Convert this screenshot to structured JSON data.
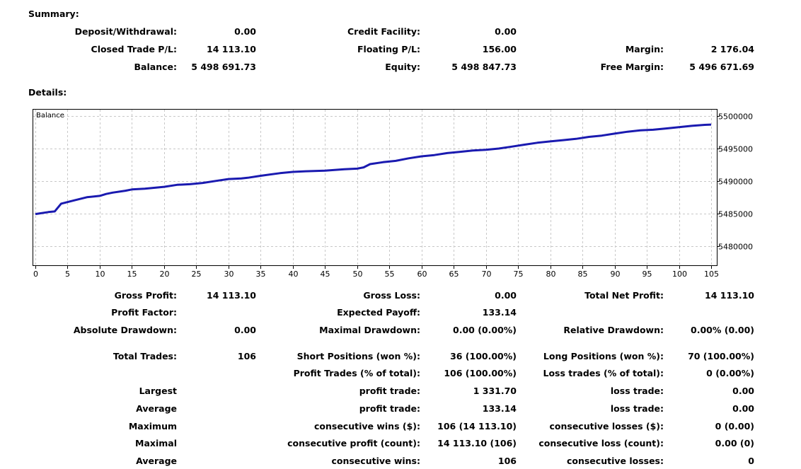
{
  "summary": {
    "title": "Summary:",
    "deposit_label": "Deposit/Withdrawal:",
    "deposit_value": "0.00",
    "credit_label": "Credit Facility:",
    "credit_value": "0.00",
    "closed_pl_label": "Closed Trade P/L:",
    "closed_pl_value": "14 113.10",
    "floating_label": "Floating P/L:",
    "floating_value": "156.00",
    "margin_label": "Margin:",
    "margin_value": "2 176.04",
    "balance_label": "Balance:",
    "balance_value": "5 498 691.73",
    "equity_label": "Equity:",
    "equity_value": "5 498 847.73",
    "free_margin_label": "Free Margin:",
    "free_margin_value": "5 496 671.69"
  },
  "details": {
    "title": "Details:",
    "gross_profit_label": "Gross Profit:",
    "gross_profit_value": "14 113.10",
    "gross_loss_label": "Gross Loss:",
    "gross_loss_value": "0.00",
    "total_net_profit_label": "Total Net Profit:",
    "total_net_profit_value": "14 113.10",
    "profit_factor_label": "Profit Factor:",
    "expected_payoff_label": "Expected Payoff:",
    "expected_payoff_value": "133.14",
    "absolute_drawdown_label": "Absolute Drawdown:",
    "absolute_drawdown_value": "0.00",
    "maximal_drawdown_label": "Maximal Drawdown:",
    "maximal_drawdown_value": "0.00 (0.00%)",
    "relative_drawdown_label": "Relative Drawdown:",
    "relative_drawdown_value": "0.00% (0.00)",
    "total_trades_label": "Total Trades:",
    "total_trades_value": "106",
    "short_positions_label": "Short Positions (won %):",
    "short_positions_value": "36 (100.00%)",
    "long_positions_label": "Long Positions (won %):",
    "long_positions_value": "70 (100.00%)",
    "profit_trades_label": "Profit Trades (% of total):",
    "profit_trades_value": "106 (100.00%)",
    "loss_trades_label": "Loss trades (% of total):",
    "loss_trades_value": "0 (0.00%)",
    "largest_label": "Largest",
    "largest_profit_label": "profit trade:",
    "largest_profit_value": "1 331.70",
    "largest_loss_label": "loss trade:",
    "largest_loss_value": "0.00",
    "average_label": "Average",
    "average_profit_label": "profit trade:",
    "average_profit_value": "133.14",
    "average_loss_label": "loss trade:",
    "average_loss_value": "0.00",
    "maximum_label": "Maximum",
    "max_wins_label": "consecutive wins ($):",
    "max_wins_value": "106 (14 113.10)",
    "max_losses_label": "consecutive losses ($):",
    "max_losses_value": "0 (0.00)",
    "maximal_label": "Maximal",
    "maximal_profit_label": "consecutive profit (count):",
    "maximal_profit_value": "14 113.10 (106)",
    "maximal_loss_label": "consecutive loss (count):",
    "maximal_loss_value": "0.00 (0)",
    "average2_label": "Average",
    "avg_wins_label": "consecutive wins:",
    "avg_wins_value": "106",
    "avg_losses_label": "consecutive losses:",
    "avg_losses_value": "0"
  },
  "chart_data": {
    "type": "line",
    "title": "Balance",
    "xlabel": "",
    "ylabel": "",
    "xlim": [
      0,
      105
    ],
    "ylim": [
      5477000,
      5501000
    ],
    "x_ticks": [
      0,
      5,
      10,
      15,
      20,
      25,
      30,
      35,
      40,
      45,
      50,
      55,
      60,
      65,
      70,
      75,
      80,
      85,
      90,
      95,
      100,
      105
    ],
    "y_ticks": [
      5480000,
      5485000,
      5490000,
      5495000,
      5500000
    ],
    "grid": true,
    "line_color": "#1a1ab0",
    "series": [
      {
        "x": [
          0,
          2,
          3,
          4,
          6,
          8,
          10,
          11,
          12,
          14,
          15,
          17,
          18,
          20,
          22,
          24,
          26,
          28,
          30,
          32,
          33,
          35,
          38,
          40,
          42,
          45,
          48,
          50,
          51,
          52,
          54,
          56,
          58,
          60,
          62,
          64,
          66,
          68,
          70,
          72,
          74,
          76,
          78,
          80,
          82,
          84,
          86,
          88,
          90,
          92,
          94,
          96,
          98,
          100,
          102,
          104,
          105
        ],
        "y": [
          5484900,
          5485200,
          5485300,
          5486500,
          5487000,
          5487500,
          5487700,
          5488000,
          5488200,
          5488500,
          5488700,
          5488800,
          5488900,
          5489100,
          5489400,
          5489500,
          5489700,
          5490000,
          5490300,
          5490400,
          5490500,
          5490800,
          5491200,
          5491400,
          5491500,
          5491600,
          5491800,
          5491900,
          5492100,
          5492600,
          5492900,
          5493100,
          5493500,
          5493800,
          5494000,
          5494300,
          5494500,
          5494700,
          5494800,
          5495000,
          5495300,
          5495600,
          5495900,
          5496100,
          5496300,
          5496500,
          5496800,
          5497000,
          5497300,
          5497600,
          5497800,
          5497900,
          5498100,
          5498300,
          5498500,
          5498650,
          5498700
        ]
      }
    ]
  }
}
